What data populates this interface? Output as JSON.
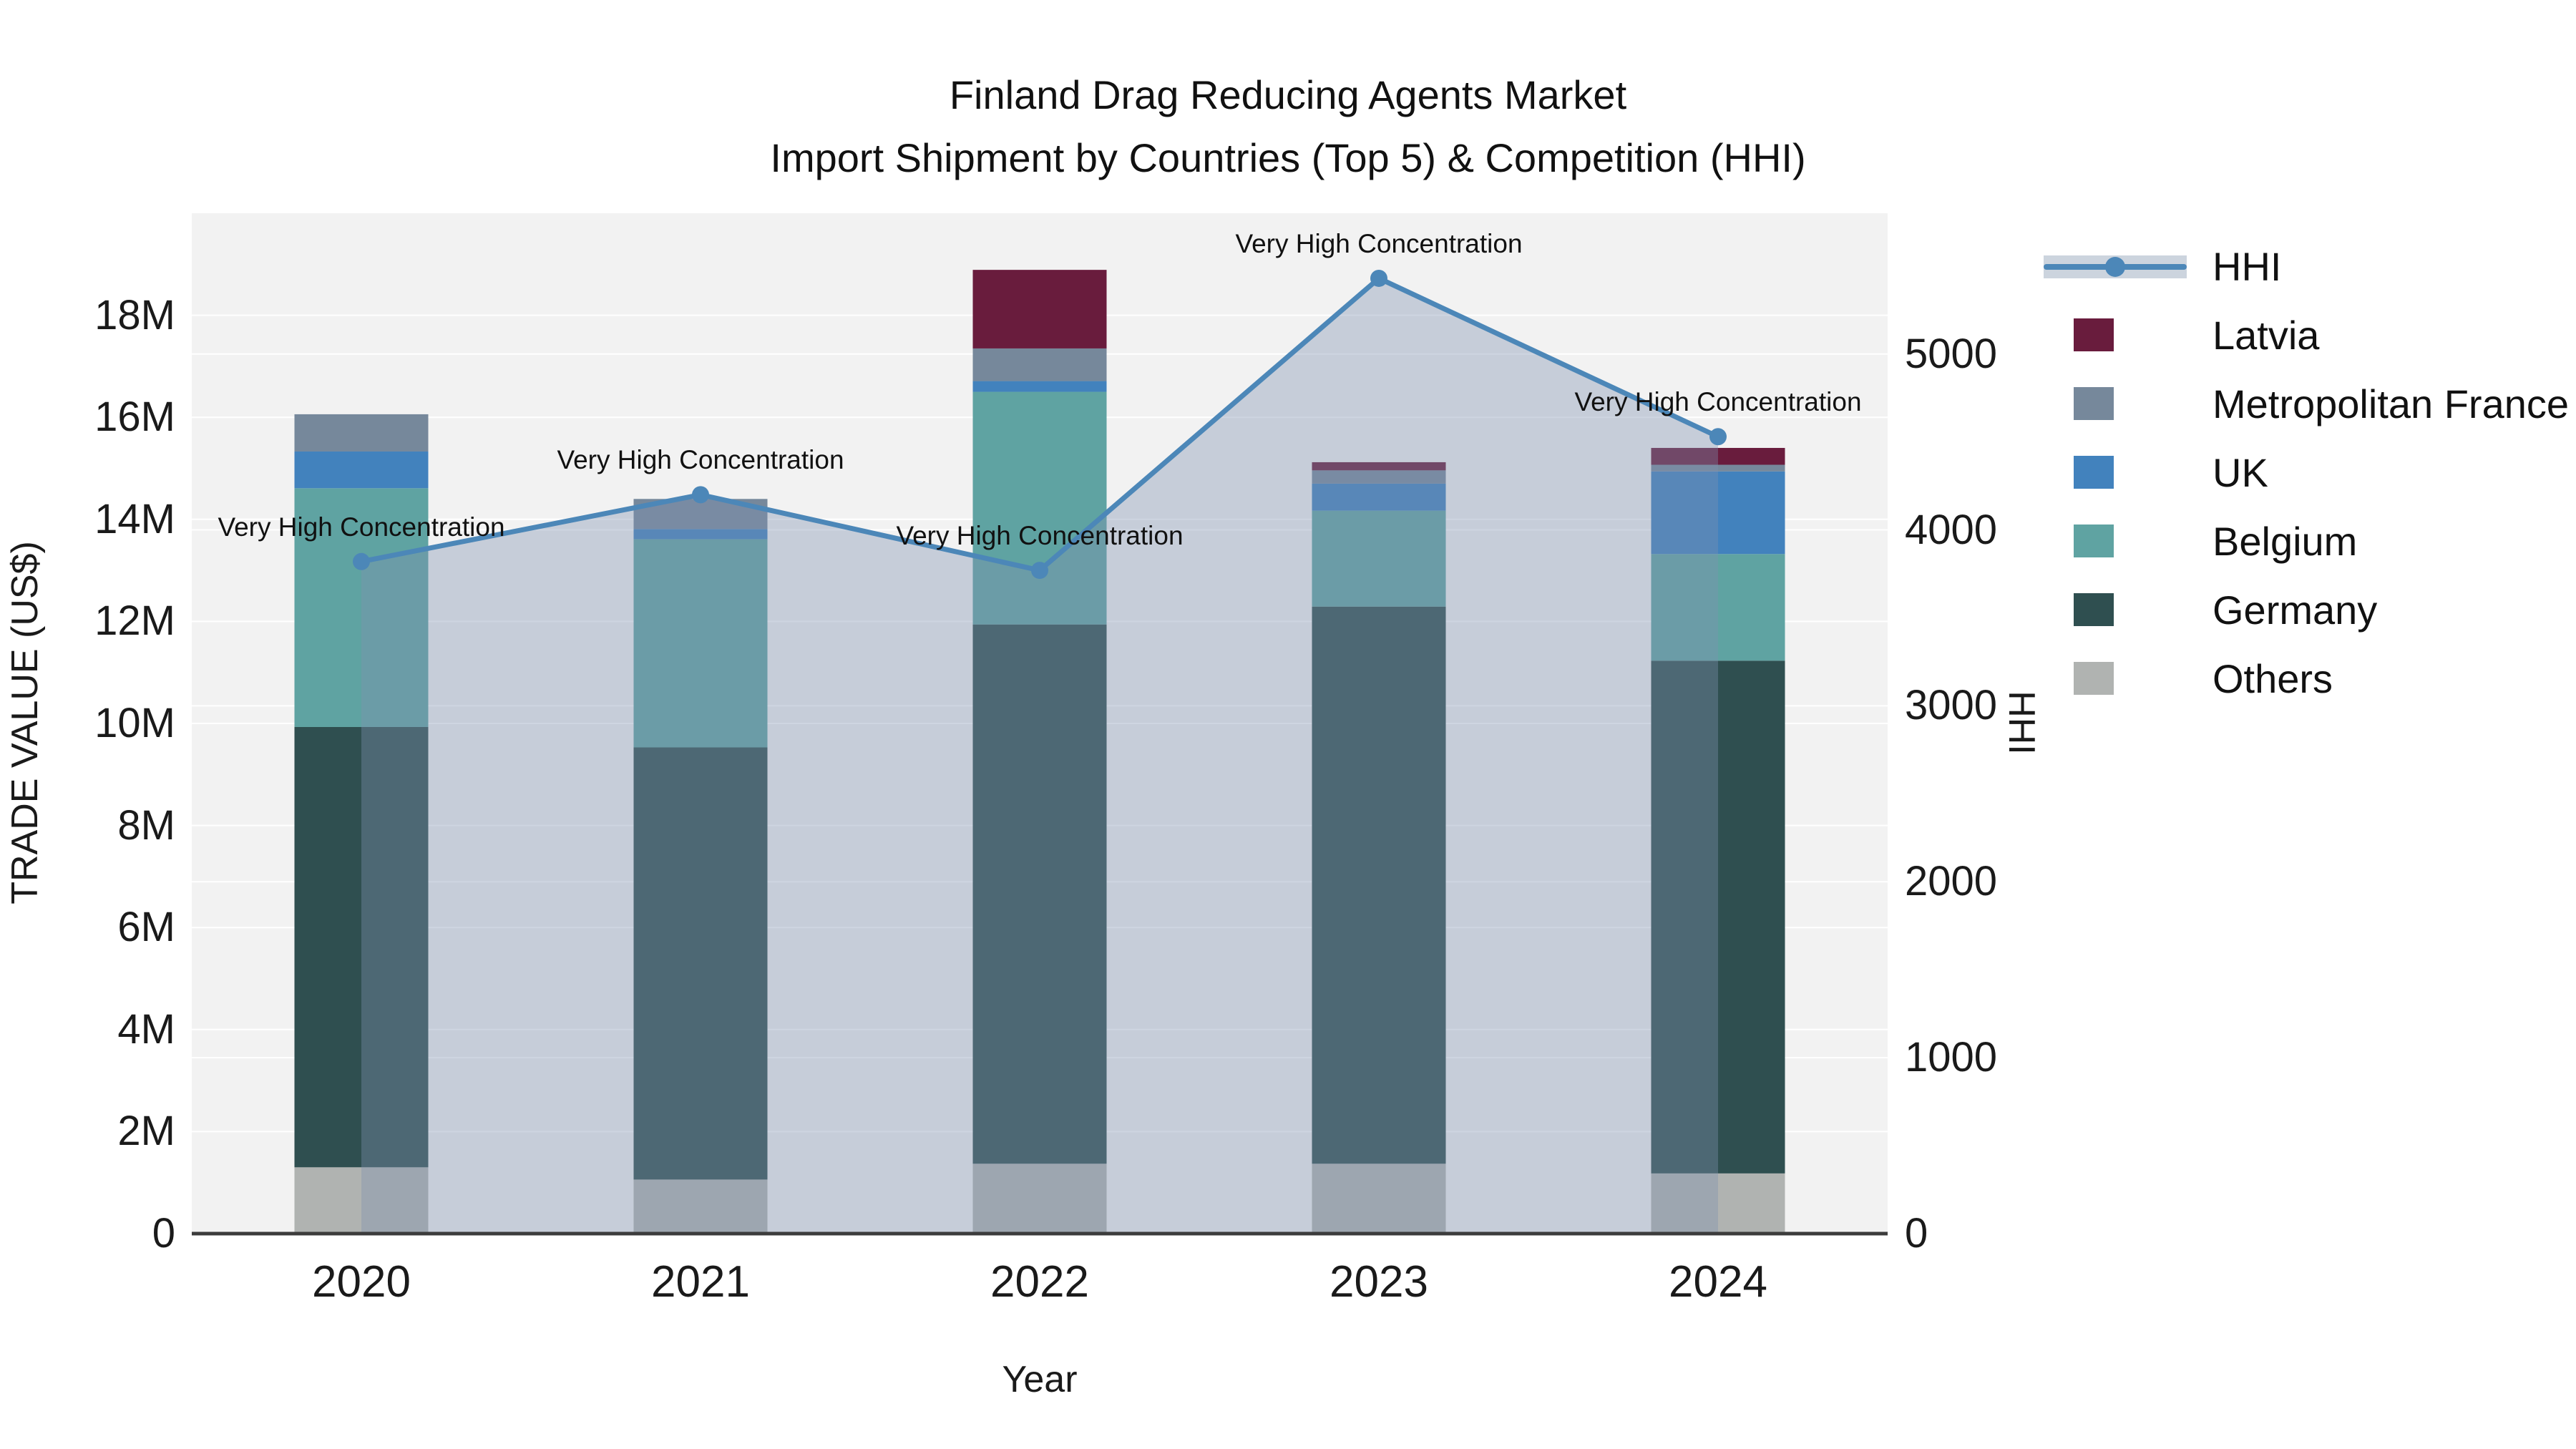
{
  "title": {
    "line1": "Finland Drag Reducing Agents Market",
    "line2": "Import Shipment by Countries (Top 5) & Competition (HHI)"
  },
  "axes": {
    "x": {
      "title": "Year"
    },
    "y_left": {
      "title": "TRADE VALUE (US$)",
      "range_millions": [
        0,
        20
      ],
      "ticks": [
        {
          "value": 0,
          "label": "0"
        },
        {
          "value": 2,
          "label": "2M"
        },
        {
          "value": 4,
          "label": "4M"
        },
        {
          "value": 6,
          "label": "6M"
        },
        {
          "value": 8,
          "label": "8M"
        },
        {
          "value": 10,
          "label": "10M"
        },
        {
          "value": 12,
          "label": "12M"
        },
        {
          "value": 14,
          "label": "14M"
        },
        {
          "value": 16,
          "label": "16M"
        },
        {
          "value": 18,
          "label": "18M"
        }
      ]
    },
    "y_right": {
      "title": "HHI",
      "range": [
        0,
        5800
      ],
      "ticks": [
        {
          "value": 0,
          "label": "0"
        },
        {
          "value": 1000,
          "label": "1000"
        },
        {
          "value": 2000,
          "label": "2000"
        },
        {
          "value": 3000,
          "label": "3000"
        },
        {
          "value": 4000,
          "label": "4000"
        },
        {
          "value": 5000,
          "label": "5000"
        }
      ]
    }
  },
  "chart_data": {
    "type": "stacked-bar + line (dual axis)",
    "title": "Finland Drag Reducing Agents Market Import Shipment by Countries (Top 5) & Competition (HHI)",
    "categories": [
      "2020",
      "2021",
      "2022",
      "2023",
      "2024"
    ],
    "bar_units": "trade value, millions US$",
    "series": [
      {
        "name": "Others",
        "color": "#b0b3b1",
        "values": [
          1.3,
          1.06,
          1.37,
          1.37,
          1.18
        ]
      },
      {
        "name": "Germany",
        "color": "#2f4f50",
        "values": [
          8.63,
          8.47,
          10.57,
          10.92,
          10.05
        ]
      },
      {
        "name": "Belgium",
        "color": "#5fa3a2",
        "values": [
          4.68,
          4.08,
          4.56,
          1.88,
          2.09
        ]
      },
      {
        "name": "UK",
        "color": "#4282bd",
        "values": [
          0.72,
          0.2,
          0.21,
          0.53,
          1.62
        ]
      },
      {
        "name": "Metropolitan France",
        "color": "#76889b",
        "values": [
          0.73,
          0.59,
          0.64,
          0.26,
          0.13
        ]
      },
      {
        "name": "Latvia",
        "color": "#691c3d",
        "values": [
          0.0,
          0.0,
          1.54,
          0.16,
          0.33
        ]
      }
    ],
    "totals_millions": [
      16.06,
      14.4,
      18.89,
      15.12,
      15.4
    ],
    "hhi": {
      "name": "HHI",
      "values": [
        3820,
        4200,
        3770,
        5430,
        4530
      ],
      "line_color": "#4c87b8",
      "area_fill": "rgba(125,144,175,0.38)",
      "marker": "circle"
    },
    "annotations": [
      {
        "category": "2020",
        "text": "Very High Concentration"
      },
      {
        "category": "2021",
        "text": "Very High Concentration"
      },
      {
        "category": "2022",
        "text": "Very High Concentration"
      },
      {
        "category": "2023",
        "text": "Very High Concentration"
      },
      {
        "category": "2024",
        "text": "Very High Concentration"
      }
    ],
    "legend_position": "right",
    "grid": true
  },
  "legend": {
    "items": [
      {
        "label": "HHI",
        "type": "line",
        "color": "#4c87b8",
        "band_color": "#ccd4de"
      },
      {
        "label": "Latvia",
        "type": "swatch",
        "color": "#691c3d"
      },
      {
        "label": "Metropolitan France",
        "type": "swatch",
        "color": "#76889b"
      },
      {
        "label": "UK",
        "type": "swatch",
        "color": "#4282bd"
      },
      {
        "label": "Belgium",
        "type": "swatch",
        "color": "#5fa3a2"
      },
      {
        "label": "Germany",
        "type": "swatch",
        "color": "#2f4f50"
      },
      {
        "label": "Others",
        "type": "swatch",
        "color": "#b0b3b1"
      }
    ]
  },
  "colors": {
    "plot_bg": "#f2f2f2",
    "gridline": "#ffffff",
    "axis_line": "#3c3c3c",
    "text": "#1a1a1a"
  }
}
